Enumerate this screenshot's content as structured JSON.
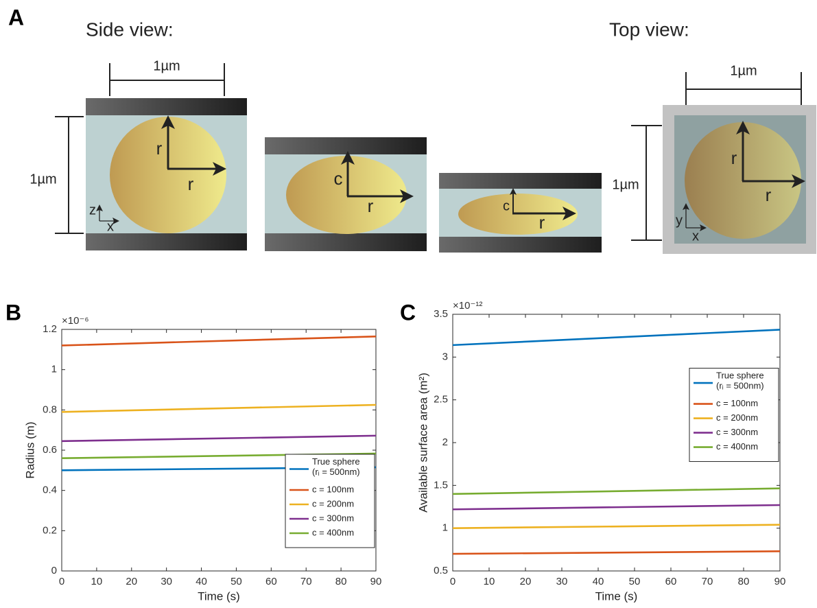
{
  "panel_labels": [
    "A",
    "B",
    "C"
  ],
  "panel_a": {
    "side_view_title": "Side view:",
    "top_view_title": "Top view:",
    "scale_labels": [
      "1µm",
      "1µm",
      "1µm",
      "1µm"
    ],
    "side_shapes": [
      {
        "vertical": "r",
        "horizontal": "r"
      },
      {
        "vertical": "c",
        "horizontal": "r"
      },
      {
        "vertical": "c",
        "horizontal": "r"
      }
    ],
    "top_shape": {
      "vertical": "r",
      "horizontal": "r"
    },
    "side_axes": [
      "z",
      "x"
    ],
    "top_axes": [
      "y",
      "x"
    ]
  },
  "chart_data": [
    {
      "type": "line",
      "y_multiplier": "×10⁻⁶",
      "xlabel": "Time (s)",
      "ylabel": "Radius (m)",
      "x": [
        0,
        90
      ],
      "xlim": [
        0,
        90
      ],
      "xticks": [
        0,
        10,
        20,
        30,
        40,
        50,
        60,
        70,
        80,
        90
      ],
      "ylim": [
        0,
        1.2
      ],
      "yticks": [
        0,
        0.2,
        0.4,
        0.6,
        0.8,
        1,
        1.2
      ],
      "grid": false,
      "legend": "lower right",
      "series": [
        {
          "name": "True sphere\n(rᵢ = 500nm)",
          "color": "#0072bd",
          "values": [
            0.5,
            0.515
          ]
        },
        {
          "name": "c = 100nm",
          "color": "#d95319",
          "values": [
            1.12,
            1.165
          ]
        },
        {
          "name": "c = 200nm",
          "color": "#edb120",
          "values": [
            0.79,
            0.825
          ]
        },
        {
          "name": "c = 300nm",
          "color": "#7e2f8e",
          "values": [
            0.645,
            0.672
          ]
        },
        {
          "name": "c = 400nm",
          "color": "#77ac30",
          "values": [
            0.56,
            0.583
          ]
        }
      ]
    },
    {
      "type": "line",
      "y_multiplier": "×10⁻¹²",
      "xlabel": "Time (s)",
      "ylabel": "Available surface area (m²)",
      "x": [
        0,
        90
      ],
      "xlim": [
        0,
        90
      ],
      "xticks": [
        0,
        10,
        20,
        30,
        40,
        50,
        60,
        70,
        80,
        90
      ],
      "ylim": [
        0.5,
        3.5
      ],
      "yticks": [
        0.5,
        1,
        1.5,
        2,
        2.5,
        3,
        3.5
      ],
      "grid": false,
      "legend": "upper right",
      "series": [
        {
          "name": "True sphere\n(rᵢ = 500nm)",
          "color": "#0072bd",
          "values": [
            3.14,
            3.32
          ]
        },
        {
          "name": "c = 100nm",
          "color": "#d95319",
          "values": [
            0.7,
            0.73
          ]
        },
        {
          "name": "c = 200nm",
          "color": "#edb120",
          "values": [
            1.0,
            1.04
          ]
        },
        {
          "name": "c = 300nm",
          "color": "#7e2f8e",
          "values": [
            1.22,
            1.27
          ]
        },
        {
          "name": "c = 400nm",
          "color": "#77ac30",
          "values": [
            1.4,
            1.465
          ]
        }
      ]
    }
  ]
}
